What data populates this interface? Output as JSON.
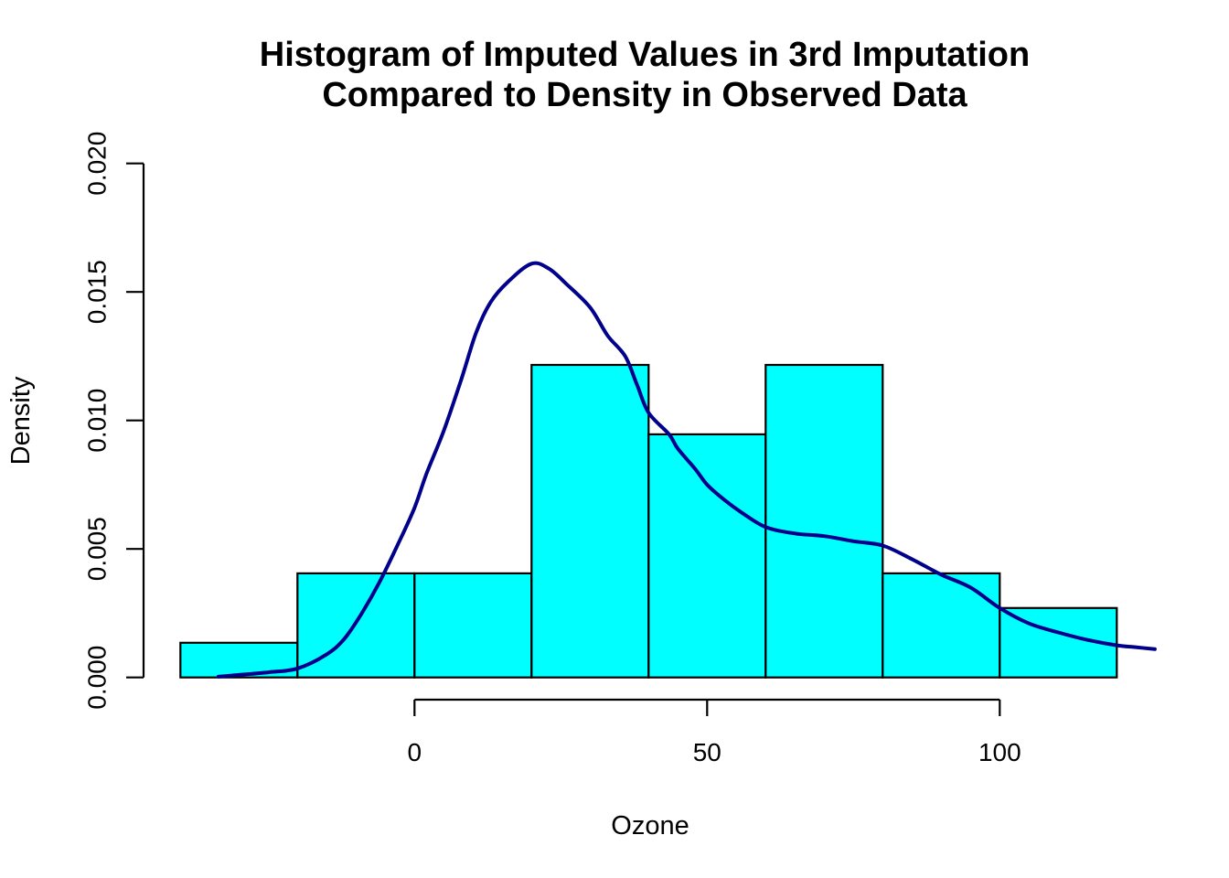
{
  "title": {
    "line1": "Histogram of Imputed Values in 3rd Imputation",
    "line2": "Compared to Density in Observed Data"
  },
  "axes": {
    "xlabel": "Ozone",
    "ylabel": "Density",
    "x_tick_labels": [
      "0",
      "50",
      "100"
    ],
    "y_tick_labels": [
      "0.000",
      "0.005",
      "0.010",
      "0.015",
      "0.020"
    ]
  },
  "colors": {
    "bar_fill": "#00FFFF",
    "bar_stroke": "#000000",
    "curve": "#00008B",
    "axis": "#000000"
  },
  "chart_data": {
    "type": "bar",
    "subtype": "histogram-with-density-curve",
    "title": "Histogram of Imputed Values in 3rd Imputation Compared to Density in Observed Data",
    "xlabel": "Ozone",
    "ylabel": "Density",
    "xlim": [
      -45,
      130
    ],
    "ylim": [
      0,
      0.02
    ],
    "x_ticks": [
      0,
      50,
      100
    ],
    "y_ticks": [
      0,
      0.005,
      0.01,
      0.015,
      0.02
    ],
    "grid": false,
    "legend": "none",
    "histogram": {
      "bin_breaks": [
        -40,
        -20,
        0,
        20,
        40,
        60,
        80,
        100,
        120
      ],
      "bin_densities": [
        0.00135,
        0.00405,
        0.00405,
        0.01216,
        0.00946,
        0.01216,
        0.00405,
        0.0027
      ]
    },
    "series": [
      {
        "name": "observed-data-density",
        "type": "line",
        "x": [
          -33.5,
          -30,
          -25,
          -20,
          -15,
          -12,
          -9,
          -6,
          -3,
          0,
          2,
          5,
          8,
          10.5,
          13,
          16,
          20,
          23,
          26,
          30,
          33,
          36,
          38,
          40,
          43.5,
          45,
          48,
          50,
          53,
          56,
          60,
          65,
          70,
          75,
          80,
          85,
          90,
          95,
          100,
          105,
          110,
          115,
          120,
          123,
          126.5
        ],
        "y": [
          3e-05,
          0.0001,
          0.0002,
          0.00035,
          0.0009,
          0.0015,
          0.0025,
          0.0037,
          0.0051,
          0.0066,
          0.0079,
          0.0096,
          0.0116,
          0.0134,
          0.0146,
          0.0154,
          0.0161,
          0.0159,
          0.0153,
          0.0144,
          0.0133,
          0.0125,
          0.0114,
          0.0103,
          0.00946,
          0.0089,
          0.0081,
          0.0075,
          0.0069,
          0.0064,
          0.00585,
          0.0056,
          0.0055,
          0.0053,
          0.00513,
          0.0046,
          0.004,
          0.0035,
          0.0027,
          0.0021,
          0.00175,
          0.00146,
          0.00125,
          0.00118,
          0.0011
        ]
      }
    ]
  }
}
